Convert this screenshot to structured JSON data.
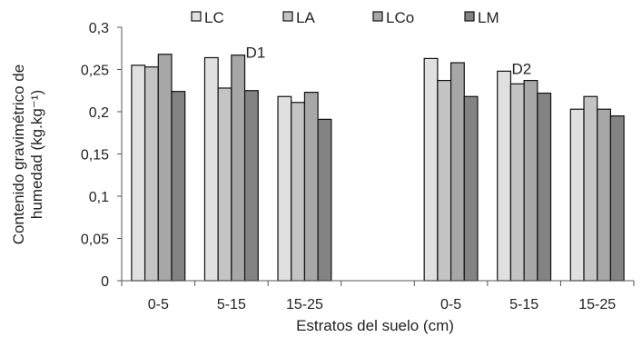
{
  "chart_data": {
    "type": "bar",
    "xlabel": "Estratos del suelo (cm)",
    "ylabel_lines": [
      "Contenido gravimétrico de",
      "humedad (kg.kg⁻¹)"
    ],
    "ylim": [
      0,
      0.3
    ],
    "yticks": [
      "0",
      "0,05",
      "0,1",
      "0,15",
      "0,2",
      "0,25",
      "0,3"
    ],
    "yticks_values": [
      0,
      0.05,
      0.1,
      0.15,
      0.2,
      0.25,
      0.3
    ],
    "groups": [
      {
        "label": "0-5",
        "values": [
          0.255,
          0.253,
          0.268,
          0.224
        ]
      },
      {
        "label": "5-15",
        "values": [
          0.264,
          0.228,
          0.267,
          0.225
        ]
      },
      {
        "label": "15-25",
        "values": [
          0.218,
          0.211,
          0.223,
          0.191
        ]
      },
      {
        "label": "",
        "values": []
      },
      {
        "label": "0-5",
        "values": [
          0.263,
          0.237,
          0.258,
          0.218
        ]
      },
      {
        "label": "5-15",
        "values": [
          0.248,
          0.233,
          0.237,
          0.222
        ]
      },
      {
        "label": "15-25",
        "values": [
          0.203,
          0.218,
          0.203,
          0.195
        ]
      }
    ],
    "series": [
      {
        "name": "LC",
        "color": "#e0e0e0"
      },
      {
        "name": "LA",
        "color": "#c4c4c4"
      },
      {
        "name": "LCo",
        "color": "#a7a7a7"
      },
      {
        "name": "LM",
        "color": "#838383"
      }
    ],
    "annotations": [
      {
        "text": "D1",
        "group": 1,
        "bar": 2,
        "value": 0.267
      },
      {
        "text": "D2",
        "group": 5,
        "bar": 0,
        "value": 0.248
      }
    ],
    "legend_position": "top",
    "grid": false
  }
}
